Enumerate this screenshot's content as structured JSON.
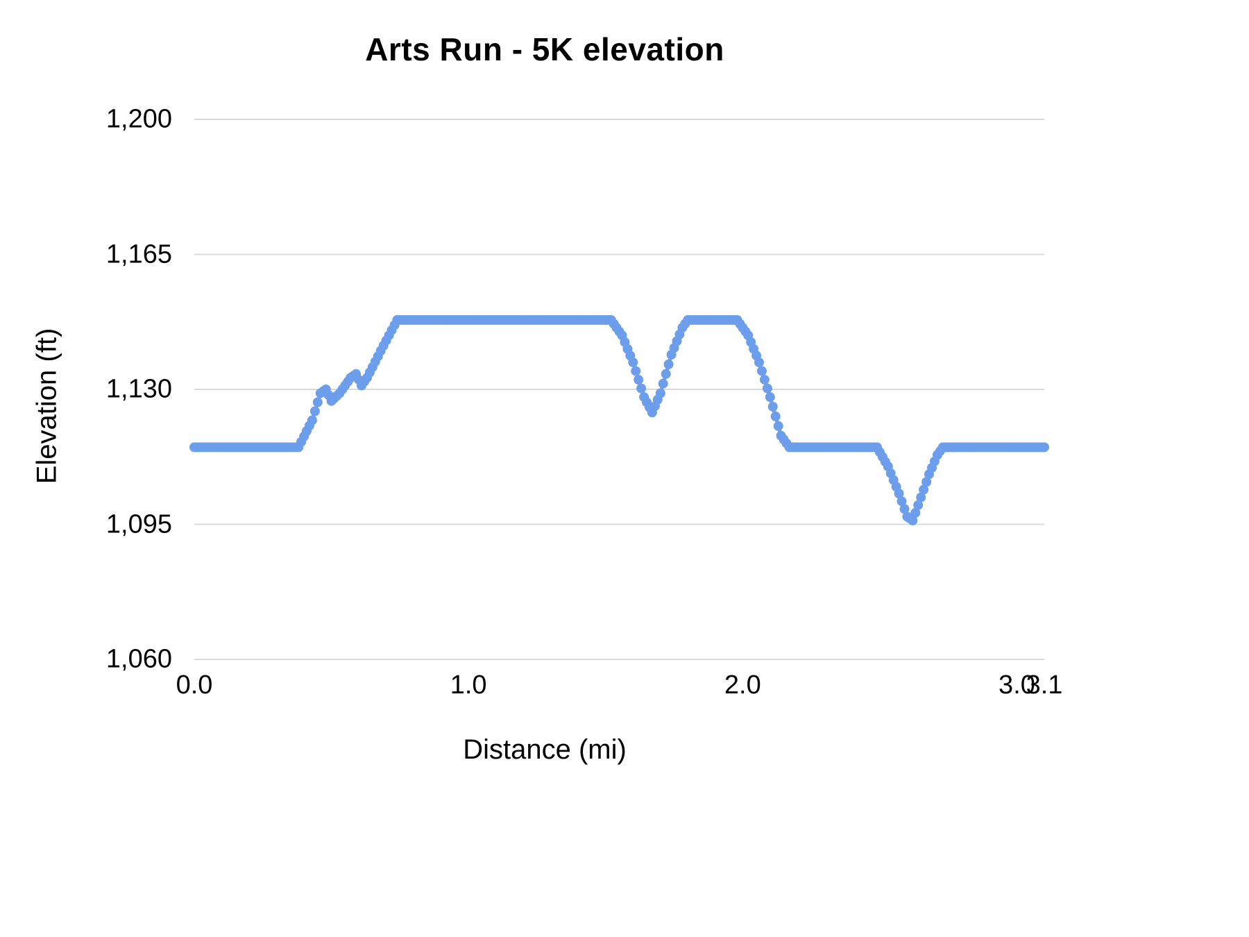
{
  "chart_data": {
    "type": "line",
    "title": "Arts Run - 5K elevation",
    "xlabel": "Distance (mi)",
    "ylabel": "Elevation (ft)",
    "xlim": [
      0.0,
      3.1
    ],
    "ylim": [
      1060,
      1200
    ],
    "grid": true,
    "legend": "none",
    "colors": {
      "series": "#6d9eeb",
      "gridline": "#d9d9d9",
      "text": "#000000",
      "background": "#ffffff"
    },
    "y_ticks": [
      {
        "value": 1200,
        "label": "1,200"
      },
      {
        "value": 1165,
        "label": "1,165"
      },
      {
        "value": 1130,
        "label": "1,130"
      },
      {
        "value": 1095,
        "label": "1,095"
      },
      {
        "value": 1060,
        "label": "1,060"
      }
    ],
    "x_ticks": [
      {
        "value": 0.0,
        "label": "0.0"
      },
      {
        "value": 1.0,
        "label": "1.0"
      },
      {
        "value": 2.0,
        "label": "2.0"
      },
      {
        "value": 3.0,
        "label": "3.0"
      },
      {
        "value": 3.1,
        "label": "3.1"
      }
    ],
    "series": [
      {
        "name": "elevation",
        "marker": "circle",
        "marker_radius": 7,
        "sample_step_mi": 0.01,
        "breakpoints": [
          [
            0.0,
            1115
          ],
          [
            0.38,
            1115
          ],
          [
            0.43,
            1122
          ],
          [
            0.46,
            1129
          ],
          [
            0.48,
            1130
          ],
          [
            0.5,
            1127
          ],
          [
            0.53,
            1129
          ],
          [
            0.57,
            1133
          ],
          [
            0.59,
            1134
          ],
          [
            0.61,
            1131
          ],
          [
            0.63,
            1133
          ],
          [
            0.68,
            1140
          ],
          [
            0.74,
            1148
          ],
          [
            1.52,
            1148
          ],
          [
            1.56,
            1144
          ],
          [
            1.6,
            1137
          ],
          [
            1.64,
            1128
          ],
          [
            1.67,
            1124
          ],
          [
            1.7,
            1129
          ],
          [
            1.74,
            1139
          ],
          [
            1.78,
            1146
          ],
          [
            1.8,
            1148
          ],
          [
            1.98,
            1148
          ],
          [
            2.02,
            1144
          ],
          [
            2.06,
            1137
          ],
          [
            2.1,
            1128
          ],
          [
            2.14,
            1118
          ],
          [
            2.17,
            1115
          ],
          [
            2.49,
            1115
          ],
          [
            2.53,
            1110
          ],
          [
            2.57,
            1103
          ],
          [
            2.6,
            1097
          ],
          [
            2.62,
            1096
          ],
          [
            2.65,
            1102
          ],
          [
            2.68,
            1108
          ],
          [
            2.71,
            1113
          ],
          [
            2.73,
            1115
          ],
          [
            3.1,
            1115
          ]
        ]
      }
    ]
  }
}
